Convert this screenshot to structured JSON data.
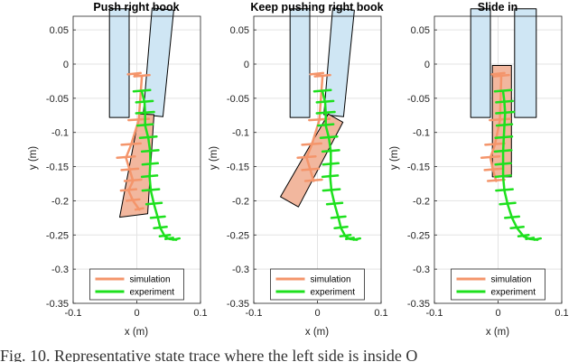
{
  "figure": {
    "caption": "Fig. 10. Representative state trace where the left side is inside O"
  },
  "colors": {
    "simulation": "#f4956b",
    "experiment": "#1de01d",
    "book": "#cfe6f4",
    "pushed_book": "#f2b79e",
    "edge": "#000000",
    "grid": "#e3e3e3"
  },
  "chart_data": [
    {
      "type": "line",
      "title": "Push right book",
      "xlabel": "x (m)",
      "ylabel": "y (m)",
      "xlim": [
        -0.1,
        0.1
      ],
      "ylim": [
        -0.35,
        0.07
      ],
      "xticks": [
        -0.1,
        0,
        0.1
      ],
      "xtick_labels": [
        "-0.1",
        "0",
        "0.1"
      ],
      "yticks": [
        0.05,
        0,
        -0.05,
        -0.1,
        -0.15,
        -0.2,
        -0.25,
        -0.3,
        -0.35
      ],
      "ytick_labels": [
        "0.05",
        "0",
        "-0.05",
        "-0.1",
        "-0.15",
        "-0.2",
        "-0.25",
        "-0.3",
        "-0.35"
      ],
      "grid": true,
      "legend": {
        "location": "bottom-center",
        "entries": [
          "simulation",
          "experiment"
        ]
      },
      "books": [
        {
          "role": "left book",
          "corners": [
            [
              -0.043,
              0.081
            ],
            [
              -0.012,
              0.081
            ],
            [
              -0.012,
              -0.078
            ],
            [
              -0.043,
              -0.078
            ]
          ]
        },
        {
          "role": "right book",
          "corners": [
            [
              0.024,
              0.082
            ],
            [
              0.058,
              0.079
            ],
            [
              0.041,
              -0.077
            ],
            [
              0.01,
              -0.074
            ]
          ]
        },
        {
          "role": "pushed book",
          "corners": [
            [
              0.004,
              -0.073
            ],
            [
              0.027,
              -0.074
            ],
            [
              0.017,
              -0.219
            ],
            [
              -0.027,
              -0.224
            ]
          ]
        }
      ],
      "series": [
        {
          "name": "simulation",
          "x": [
            -0.004,
            0.008,
            0.003,
            -0.009,
            -0.017,
            -0.011,
            -0.006,
            -0.013,
            -0.006,
            0.004
          ],
          "y": [
            -0.015,
            -0.018,
            -0.082,
            -0.118,
            -0.137,
            -0.155,
            -0.171,
            -0.185,
            -0.2,
            -0.213
          ],
          "hash_half_width": [
            0.01,
            0.012,
            0.016,
            0.015,
            0.014,
            0.013,
            0.013,
            0.012,
            0.01,
            0.006
          ]
        },
        {
          "name": "experiment",
          "x": [
            0.008,
            0.012,
            0.013,
            0.013,
            0.018,
            0.021,
            0.021,
            0.02,
            0.022,
            0.027,
            0.033,
            0.037,
            0.044,
            0.051,
            0.062
          ],
          "y": [
            -0.04,
            -0.056,
            -0.072,
            -0.09,
            -0.108,
            -0.128,
            -0.147,
            -0.165,
            -0.185,
            -0.205,
            -0.225,
            -0.24,
            -0.252,
            -0.256,
            -0.257
          ],
          "hash_half_width": [
            0.013,
            0.013,
            0.014,
            0.012,
            0.013,
            0.013,
            0.012,
            0.012,
            0.013,
            0.012,
            0.011,
            0.01,
            0.008,
            0.006,
            0.005
          ]
        }
      ]
    },
    {
      "type": "line",
      "title": "Keep pushing right book",
      "xlabel": "x (m)",
      "ylabel": "y (m)",
      "xlim": [
        -0.1,
        0.1
      ],
      "ylim": [
        -0.35,
        0.07
      ],
      "xticks": [
        -0.1,
        0,
        0.1
      ],
      "xtick_labels": [
        "-0.1",
        "0",
        "0.1"
      ],
      "yticks": [
        0.05,
        0,
        -0.05,
        -0.1,
        -0.15,
        -0.2,
        -0.25,
        -0.3,
        -0.35
      ],
      "ytick_labels": [
        "0.05",
        "0",
        "-0.05",
        "-0.1",
        "-0.15",
        "-0.2",
        "-0.25",
        "-0.3",
        "-0.35"
      ],
      "grid": true,
      "legend": {
        "location": "bottom-center",
        "entries": [
          "simulation",
          "experiment"
        ]
      },
      "books": [
        {
          "role": "left book",
          "corners": [
            [
              -0.043,
              0.081
            ],
            [
              -0.012,
              0.081
            ],
            [
              -0.012,
              -0.078
            ],
            [
              -0.043,
              -0.078
            ]
          ]
        },
        {
          "role": "right book",
          "corners": [
            [
              0.024,
              0.082
            ],
            [
              0.058,
              0.079
            ],
            [
              0.041,
              -0.077
            ],
            [
              0.01,
              -0.074
            ]
          ]
        },
        {
          "role": "pushed book",
          "corners": [
            [
              0.017,
              -0.073
            ],
            [
              0.04,
              -0.085
            ],
            [
              -0.03,
              -0.209
            ],
            [
              -0.058,
              -0.194
            ]
          ]
        }
      ],
      "series": [
        {
          "name": "simulation",
          "x": [
            -0.001,
            0.008,
            0.003,
            -0.009,
            -0.017,
            -0.011,
            -0.006
          ],
          "y": [
            -0.015,
            -0.018,
            -0.082,
            -0.118,
            -0.137,
            -0.155,
            -0.171
          ],
          "hash_half_width": [
            0.01,
            0.012,
            0.016,
            0.015,
            0.014,
            0.013,
            0.013
          ]
        },
        {
          "name": "experiment",
          "x": [
            0.008,
            0.012,
            0.013,
            0.013,
            0.018,
            0.021,
            0.021,
            0.02,
            0.022,
            0.027,
            0.033,
            0.037,
            0.044,
            0.051,
            0.062
          ],
          "y": [
            -0.04,
            -0.056,
            -0.072,
            -0.09,
            -0.108,
            -0.128,
            -0.147,
            -0.165,
            -0.185,
            -0.205,
            -0.225,
            -0.24,
            -0.252,
            -0.256,
            -0.257
          ],
          "hash_half_width": [
            0.013,
            0.013,
            0.014,
            0.012,
            0.013,
            0.013,
            0.012,
            0.012,
            0.013,
            0.012,
            0.011,
            0.01,
            0.008,
            0.006,
            0.005
          ]
        }
      ]
    },
    {
      "type": "line",
      "title": "Slide in",
      "xlabel": "x (m)",
      "ylabel": "y (m)",
      "xlim": [
        -0.1,
        0.1
      ],
      "ylim": [
        -0.35,
        0.07
      ],
      "xticks": [
        -0.1,
        0,
        0.1
      ],
      "xtick_labels": [
        "-0.1",
        "0",
        "0.1"
      ],
      "yticks": [
        0.05,
        0,
        -0.05,
        -0.1,
        -0.15,
        -0.2,
        -0.25,
        -0.3,
        -0.35
      ],
      "ytick_labels": [
        "0.05",
        "0",
        "-0.05",
        "-0.1",
        "-0.15",
        "-0.2",
        "-0.25",
        "-0.3",
        "-0.35"
      ],
      "grid": true,
      "legend": {
        "location": "bottom-center",
        "entries": [
          "simulation",
          "experiment"
        ]
      },
      "books": [
        {
          "role": "left book",
          "corners": [
            [
              -0.043,
              0.081
            ],
            [
              -0.012,
              0.081
            ],
            [
              -0.012,
              -0.078
            ],
            [
              -0.043,
              -0.078
            ]
          ]
        },
        {
          "role": "right book",
          "corners": [
            [
              0.026,
              0.081
            ],
            [
              0.06,
              0.081
            ],
            [
              0.06,
              -0.078
            ],
            [
              0.026,
              -0.078
            ]
          ]
        },
        {
          "role": "pushed book",
          "corners": [
            [
              -0.009,
              -0.002
            ],
            [
              0.021,
              -0.002
            ],
            [
              0.021,
              -0.165
            ],
            [
              -0.009,
              -0.165
            ]
          ]
        }
      ],
      "series": [
        {
          "name": "simulation",
          "x": [
            0.0,
            0.005,
            0.003,
            -0.005,
            -0.012,
            -0.008,
            -0.003
          ],
          "y": [
            -0.015,
            -0.018,
            -0.082,
            -0.118,
            -0.137,
            -0.155,
            -0.171
          ],
          "hash_half_width": [
            0.01,
            0.012,
            0.016,
            0.015,
            0.014,
            0.013,
            0.013
          ]
        },
        {
          "name": "experiment",
          "x": [
            0.008,
            0.01,
            0.011,
            0.01,
            0.009,
            0.008,
            0.008,
            0.008,
            0.01,
            0.015,
            0.022,
            0.03,
            0.04,
            0.05,
            0.062
          ],
          "y": [
            -0.04,
            -0.056,
            -0.072,
            -0.09,
            -0.108,
            -0.128,
            -0.147,
            -0.165,
            -0.185,
            -0.205,
            -0.225,
            -0.24,
            -0.252,
            -0.256,
            -0.257
          ],
          "hash_half_width": [
            0.013,
            0.013,
            0.014,
            0.012,
            0.013,
            0.013,
            0.012,
            0.012,
            0.013,
            0.012,
            0.011,
            0.01,
            0.008,
            0.006,
            0.005
          ]
        }
      ]
    }
  ]
}
